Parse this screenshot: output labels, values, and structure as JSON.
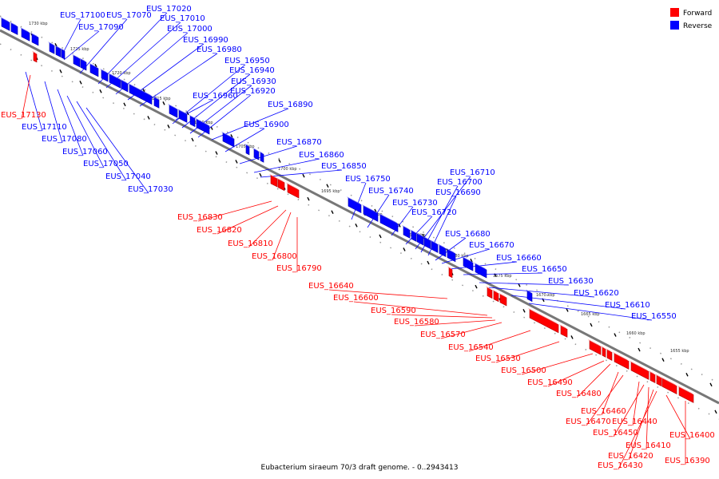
{
  "caption": "Eubacterium siraeum 70/3 draft genome. - 0..2943413",
  "legend": [
    {
      "label": "Forward",
      "color": "#ff0000"
    },
    {
      "label": "Reverse",
      "color": "#0000ff"
    }
  ],
  "colors": {
    "forward": "#ff0000",
    "reverse": "#0000ff",
    "axis": "#888888",
    "tick": "#000000"
  },
  "scale_ticks": [
    "1730 kbp",
    "1725 kbp",
    "1720 kbp",
    "1715 kbp",
    "1710 kbp",
    "1705 kbp",
    "1700 kbp",
    "1695 kbp",
    "1690 kbp",
    "1685 kbp",
    "1680 kbp",
    "1675 kbp",
    "1670 kbp",
    "1665 kbp",
    "1660 kbp",
    "1655 kbp"
  ],
  "genes_reverse": [
    "EUS_17100",
    "EUS_17090",
    "EUS_17070",
    "EUS_17020",
    "EUS_17010",
    "EUS_17000",
    "EUS_16990",
    "EUS_16980",
    "EUS_16950",
    "EUS_16940",
    "EUS_16930",
    "EUS_16920",
    "EUS_16960",
    "EUS_16890",
    "EUS_16900",
    "EUS_16870",
    "EUS_16860",
    "EUS_16850",
    "EUS_16750",
    "EUS_16740",
    "EUS_16730",
    "EUS_16720",
    "EUS_16710",
    "EUS_16700",
    "EUS_16690",
    "EUS_16680",
    "EUS_16670",
    "EUS_16660",
    "EUS_16650",
    "EUS_16630",
    "EUS_16620",
    "EUS_16610",
    "EUS_16550",
    "EUS_17110",
    "EUS_17080",
    "EUS_17060",
    "EUS_17050",
    "EUS_17040",
    "EUS_17030"
  ],
  "genes_forward": [
    "EUS_17130",
    "EUS_16830",
    "EUS_16820",
    "EUS_16810",
    "EUS_16800",
    "EUS_16790",
    "EUS_16640",
    "EUS_16600",
    "EUS_16590",
    "EUS_16580",
    "EUS_16570",
    "EUS_16540",
    "EUS_16530",
    "EUS_16500",
    "EUS_16490",
    "EUS_16480",
    "EUS_16460",
    "EUS_16470",
    "EUS_16440",
    "EUS_16450",
    "EUS_16410",
    "EUS_16420",
    "EUS_16430",
    "EUS_16400",
    "EUS_16390"
  ]
}
